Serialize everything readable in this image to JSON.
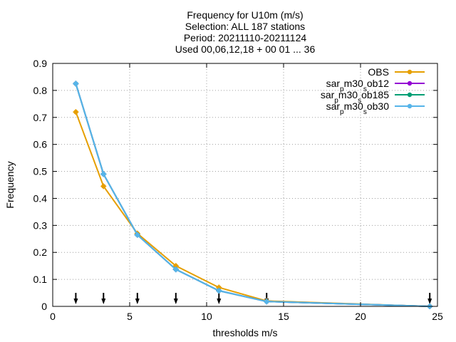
{
  "chart_data": {
    "type": "line",
    "title_lines": [
      "Frequency  for U10m (m/s)",
      "Selection: ALL    187 stations",
      "Period: 20211110-20211124",
      "Used 00,06,12,18 + 00 01 ... 36"
    ],
    "xlabel": "thresholds m/s",
    "ylabel": "Frequency",
    "xlim": [
      0,
      25
    ],
    "ylim": [
      0,
      0.9
    ],
    "xticks": [
      "0",
      "5",
      "10",
      "15",
      "20",
      "25"
    ],
    "yticks": [
      "0",
      "0.1",
      "0.2",
      "0.3",
      "0.4",
      "0.5",
      "0.6",
      "0.7",
      "0.8",
      "0.9"
    ],
    "grid": true,
    "legend_position": "top-right",
    "threshold_markers": [
      1.5,
      3.3,
      5.5,
      8.0,
      10.8,
      13.9,
      24.5
    ],
    "series": [
      {
        "name": "OBS",
        "legend_parts": [
          {
            "t": "OBS",
            "sub": false
          }
        ],
        "color": "#e69f00",
        "x": [
          1.5,
          3.3,
          5.5,
          8.0,
          10.8,
          13.9,
          24.5
        ],
        "y": [
          0.72,
          0.445,
          0.27,
          0.15,
          0.07,
          0.02,
          0.0
        ]
      },
      {
        "name": "sar_pm30_sob12",
        "legend_parts": [
          {
            "t": "sar",
            "sub": false
          },
          {
            "t": "p",
            "sub": true
          },
          {
            "t": "m30",
            "sub": false
          },
          {
            "t": "s",
            "sub": true
          },
          {
            "t": "ob12",
            "sub": false
          }
        ],
        "color": "#9400d3",
        "x": [
          1.5,
          3.3,
          5.5,
          8.0,
          10.8,
          13.9,
          24.5
        ],
        "y": [
          0.825,
          0.49,
          0.265,
          0.137,
          0.058,
          0.018,
          0.0
        ]
      },
      {
        "name": "sar_pm30_sob185",
        "legend_parts": [
          {
            "t": "sar",
            "sub": false
          },
          {
            "t": "p",
            "sub": true
          },
          {
            "t": "m30",
            "sub": false
          },
          {
            "t": "s",
            "sub": true
          },
          {
            "t": "ob185",
            "sub": false
          }
        ],
        "color": "#009e73",
        "x": [
          1.5,
          3.3,
          5.5,
          8.0,
          10.8,
          13.9,
          24.5
        ],
        "y": [
          0.825,
          0.49,
          0.265,
          0.137,
          0.058,
          0.018,
          0.0
        ]
      },
      {
        "name": "sar_pm30_sob30",
        "legend_parts": [
          {
            "t": "sar",
            "sub": false
          },
          {
            "t": "p",
            "sub": true
          },
          {
            "t": "m30",
            "sub": false
          },
          {
            "t": "s",
            "sub": true
          },
          {
            "t": "ob30",
            "sub": false
          }
        ],
        "color": "#56b4e9",
        "x": [
          1.5,
          3.3,
          5.5,
          8.0,
          10.8,
          13.9,
          24.5
        ],
        "y": [
          0.825,
          0.49,
          0.265,
          0.137,
          0.058,
          0.018,
          0.0
        ]
      }
    ]
  }
}
